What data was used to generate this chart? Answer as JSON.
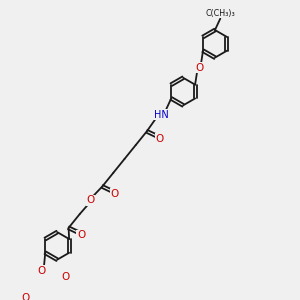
{
  "background_color": "#f0f0f0",
  "bond_color": "#1a1a1a",
  "oxygen_color": "#cc0000",
  "nitrogen_color": "#0000cc",
  "lw": 1.3,
  "figsize": [
    3.0,
    3.0
  ],
  "dpi": 100,
  "xlim": [
    0,
    10
  ],
  "ylim": [
    0,
    10
  ]
}
